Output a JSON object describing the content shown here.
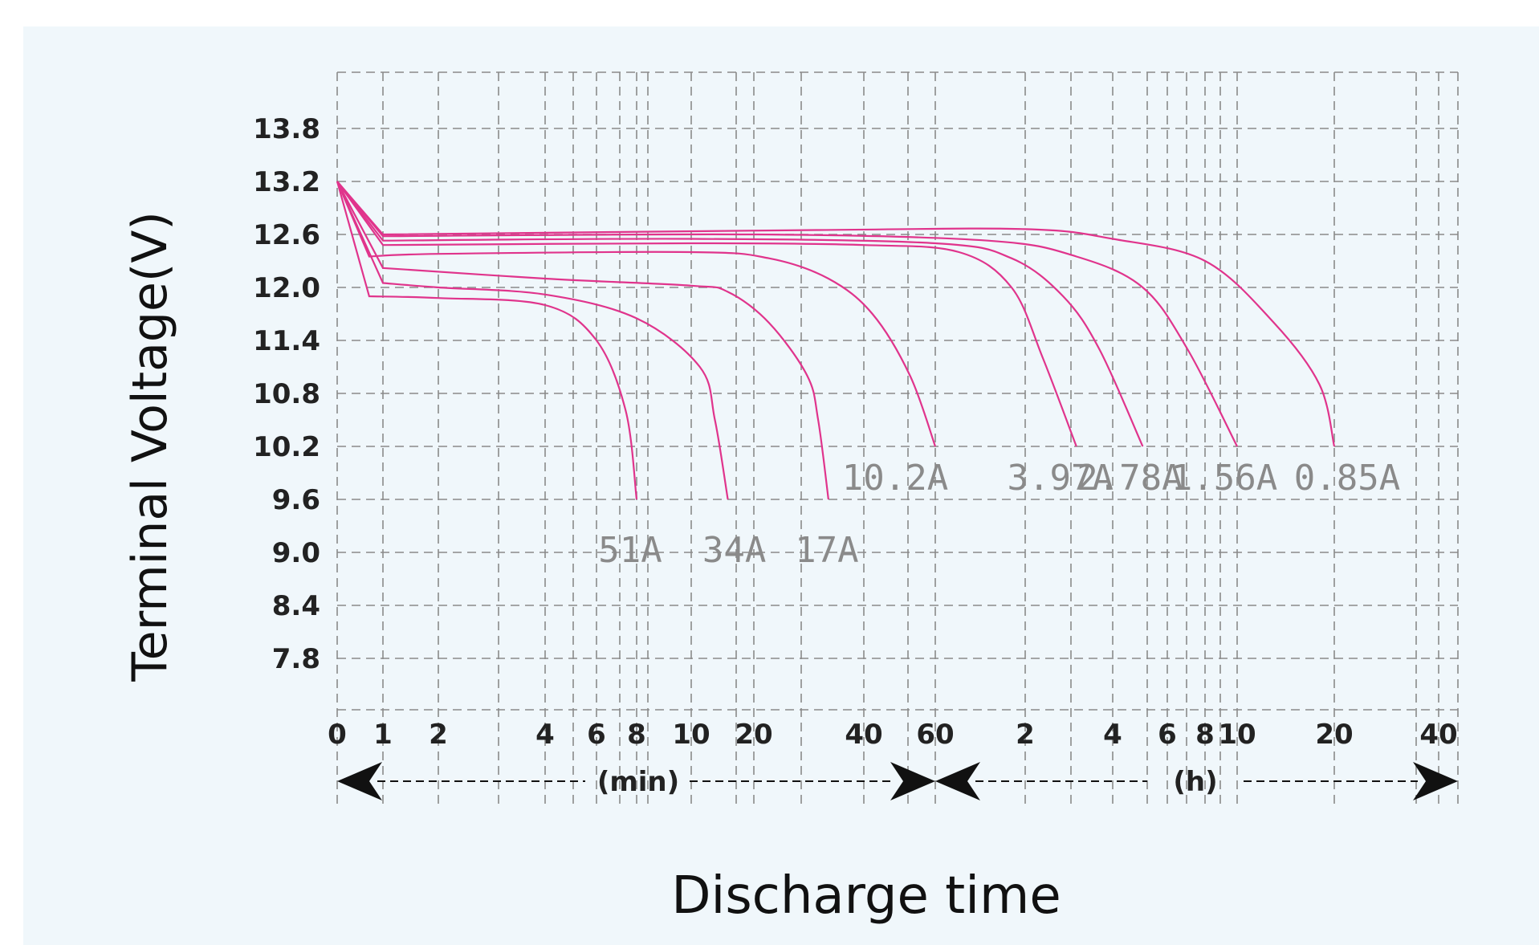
{
  "chart_data": {
    "type": "line",
    "title": "",
    "xlabel": "Discharge time",
    "ylabel": "Terminal Voltage(V)",
    "y_ticks": [
      "13.8",
      "13.2",
      "12.6",
      "12.0",
      "11.4",
      "10.8",
      "10.2",
      "9.6",
      "9.0",
      "8.4",
      "7.8"
    ],
    "ylim": [
      7.2,
      14.4
    ],
    "x_scale": "log",
    "x_ticks_min": [
      "0",
      "1",
      "2",
      "4",
      "6",
      "8",
      "10",
      "20",
      "40",
      "60"
    ],
    "x_ticks_h": [
      "2",
      "4",
      "6",
      "8",
      "10",
      "20",
      "40"
    ],
    "x_unit_min": "(min)",
    "x_unit_h": "(h)",
    "grid": true,
    "line_color": "#e0348c",
    "series": [
      {
        "name": "51A",
        "points": [
          [
            0,
            13.2
          ],
          [
            0.7,
            11.9
          ],
          [
            2,
            11.88
          ],
          [
            4,
            11.8
          ],
          [
            6,
            11.4
          ],
          [
            7.4,
            10.6
          ],
          [
            8,
            9.6
          ]
        ]
      },
      {
        "name": "34A",
        "points": [
          [
            0,
            13.2
          ],
          [
            1,
            12.05
          ],
          [
            2,
            12.0
          ],
          [
            4,
            11.92
          ],
          [
            8,
            11.65
          ],
          [
            11,
            11.1
          ],
          [
            13,
            10.5
          ],
          [
            15,
            9.6
          ]
        ]
      },
      {
        "name": "17A",
        "points": [
          [
            0,
            13.2
          ],
          [
            1,
            12.22
          ],
          [
            4,
            12.1
          ],
          [
            10,
            12.02
          ],
          [
            15,
            11.95
          ],
          [
            22,
            11.6
          ],
          [
            28,
            11.0
          ],
          [
            30,
            10.5
          ],
          [
            32,
            9.6
          ]
        ]
      },
      {
        "name": "10.2A",
        "points": [
          [
            0,
            13.2
          ],
          [
            0.7,
            12.35
          ],
          [
            2,
            12.38
          ],
          [
            10,
            12.4
          ],
          [
            22,
            12.33
          ],
          [
            32,
            12.1
          ],
          [
            42,
            11.7
          ],
          [
            52,
            11.0
          ],
          [
            60,
            10.2
          ]
        ]
      },
      {
        "name": "3.97A",
        "points": [
          [
            0,
            13.2
          ],
          [
            1,
            12.48
          ],
          [
            10,
            12.5
          ],
          [
            40,
            12.48
          ],
          [
            72,
            12.4
          ],
          [
            108,
            12.0
          ],
          [
            138,
            11.2
          ],
          [
            180,
            10.2
          ]
        ]
      },
      {
        "name": "2.78A",
        "points": [
          [
            0,
            13.2
          ],
          [
            1,
            12.53
          ],
          [
            10,
            12.55
          ],
          [
            60,
            12.5
          ],
          [
            108,
            12.33
          ],
          [
            162,
            11.9
          ],
          [
            216,
            11.3
          ],
          [
            300,
            10.2
          ]
        ]
      },
      {
        "name": "1.56A",
        "points": [
          [
            0,
            13.2
          ],
          [
            1,
            12.58
          ],
          [
            20,
            12.6
          ],
          [
            90,
            12.53
          ],
          [
            180,
            12.35
          ],
          [
            300,
            12.0
          ],
          [
            420,
            11.3
          ],
          [
            600,
            10.2
          ]
        ]
      },
      {
        "name": "0.85A",
        "points": [
          [
            0,
            13.2
          ],
          [
            1,
            12.6
          ],
          [
            30,
            12.65
          ],
          [
            120,
            12.66
          ],
          [
            240,
            12.55
          ],
          [
            480,
            12.3
          ],
          [
            780,
            11.6
          ],
          [
            1080,
            10.9
          ],
          [
            1200,
            10.2
          ]
        ]
      }
    ]
  }
}
